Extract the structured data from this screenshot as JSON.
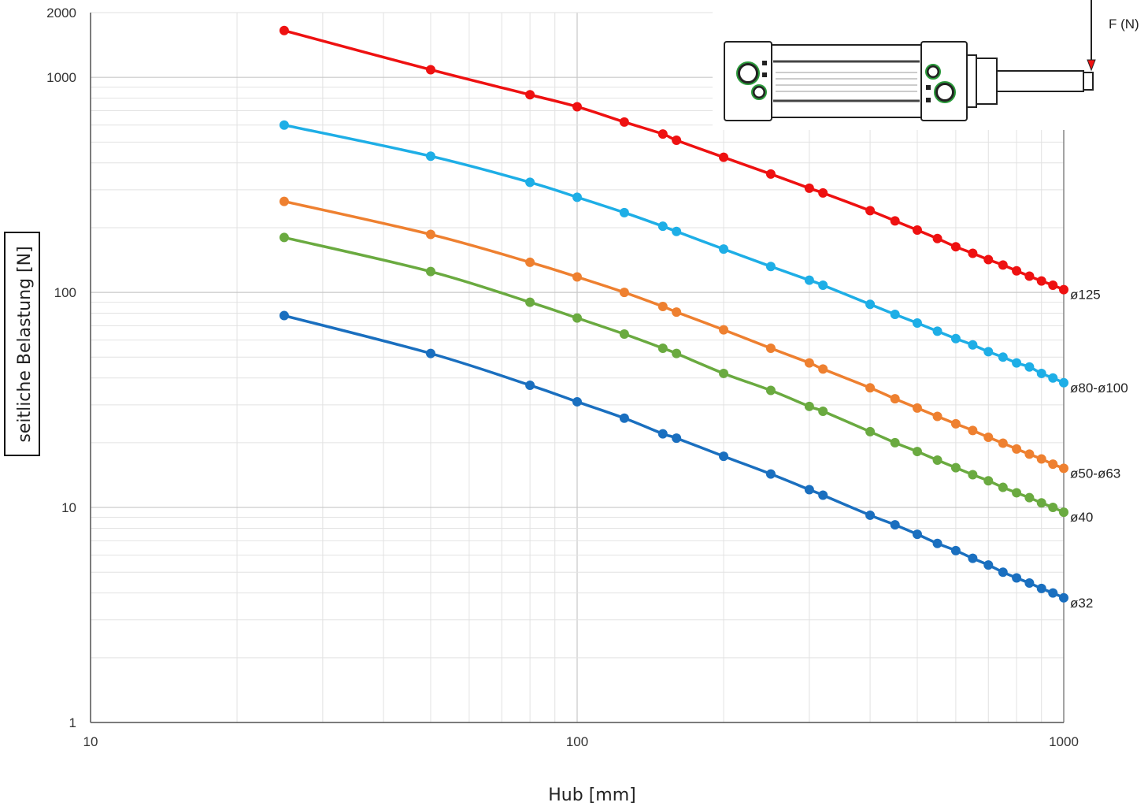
{
  "chart_data": {
    "type": "line",
    "xscale": "log",
    "yscale": "log",
    "xlim": [
      10,
      1000
    ],
    "ylim": [
      1,
      2000
    ],
    "xticks": [
      "10",
      "100",
      "1000"
    ],
    "yticks": [
      "1",
      "10",
      "100",
      "1000",
      "2000"
    ],
    "xlabel": "Hub [mm]",
    "ylabel": "seitliche Belastung [N]",
    "grid": true,
    "legend": "right, labels at line ends",
    "force_label": "F (N)",
    "x": [
      25,
      50,
      80,
      100,
      125,
      150,
      160,
      200,
      250,
      300,
      320,
      400,
      450,
      500,
      550,
      600,
      650,
      700,
      750,
      800,
      850,
      900,
      950,
      1000
    ],
    "series": [
      {
        "name": "ø125",
        "color": "#ee1111",
        "values": [
          1650,
          1085,
          830,
          730,
          620,
          545,
          510,
          425,
          355,
          305,
          290,
          240,
          215,
          195,
          178,
          163,
          152,
          142,
          134,
          126,
          119,
          113,
          108,
          103
        ]
      },
      {
        "name": "ø80-ø100",
        "color": "#1eaee6",
        "values": [
          600,
          430,
          325,
          277,
          235,
          203,
          192,
          159,
          132,
          114,
          108,
          88,
          79,
          72,
          66,
          61,
          57,
          53,
          50,
          47,
          45,
          42,
          40,
          38
        ]
      },
      {
        "name": "ø50-ø63",
        "color": "#ee8030",
        "values": [
          265,
          186,
          138,
          118,
          100,
          86,
          81,
          67,
          55,
          47,
          44,
          36,
          32,
          29,
          26.5,
          24.5,
          22.8,
          21.2,
          19.9,
          18.7,
          17.7,
          16.8,
          15.9,
          15.2
        ]
      },
      {
        "name": "ø40",
        "color": "#6aaa40",
        "values": [
          180,
          125,
          90,
          76,
          64,
          55,
          52,
          42,
          35,
          29.5,
          28,
          22.5,
          20,
          18.2,
          16.6,
          15.3,
          14.2,
          13.3,
          12.4,
          11.7,
          11.1,
          10.5,
          10,
          9.5
        ]
      },
      {
        "name": "ø32",
        "color": "#1a6fbf",
        "values": [
          78,
          52,
          37,
          31,
          26,
          22,
          21,
          17.3,
          14.3,
          12.1,
          11.4,
          9.2,
          8.3,
          7.5,
          6.8,
          6.3,
          5.8,
          5.4,
          5.0,
          4.7,
          4.45,
          4.2,
          4.0,
          3.8
        ]
      }
    ]
  }
}
